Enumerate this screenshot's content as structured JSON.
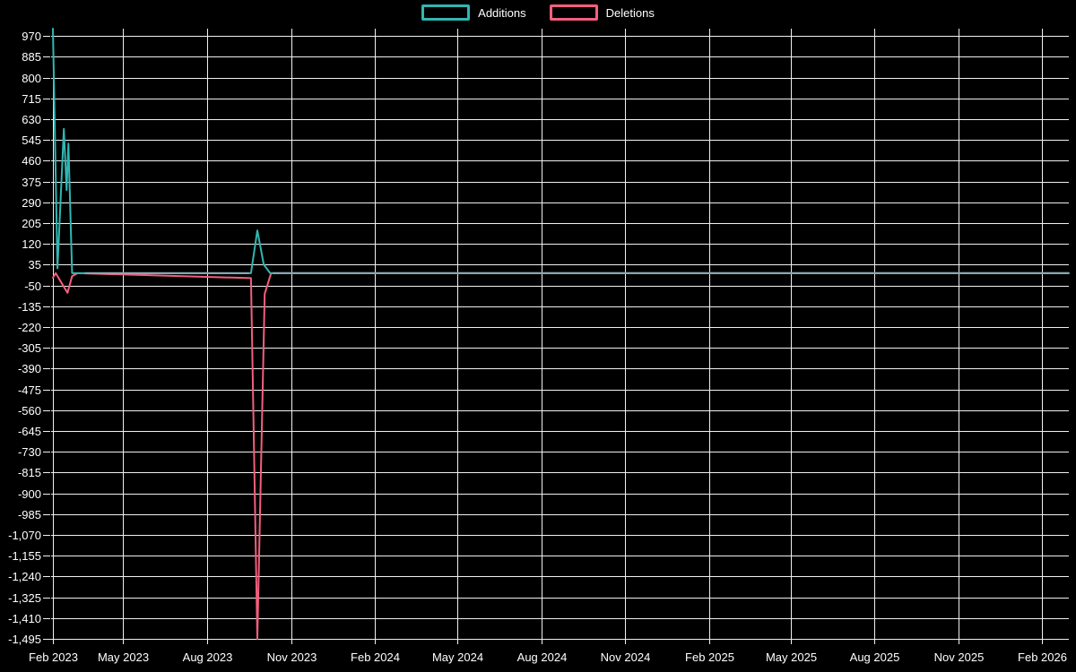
{
  "page": {
    "background": "#000000"
  },
  "legend": {
    "position": "top-center",
    "items": [
      {
        "label": "Additions",
        "color": "#31b6b2"
      },
      {
        "label": "Deletions",
        "color": "#f25f7d"
      }
    ]
  },
  "chart_data": {
    "type": "line",
    "title": "",
    "xlabel": "",
    "ylabel": "",
    "grid": true,
    "legend_position": "top",
    "background_color": "#000000",
    "gridline_color": "#f0f0f0",
    "text_color": "#ffffff",
    "overlap_line_color": "#8fa8b4",
    "y_axis": {
      "tick_step": 85,
      "range": [
        -1495,
        1000
      ],
      "tick_values": [
        970,
        885,
        800,
        715,
        630,
        545,
        460,
        375,
        290,
        205,
        120,
        35,
        -50,
        -135,
        -220,
        -305,
        -390,
        -475,
        -560,
        -645,
        -730,
        -815,
        -900,
        -985,
        -1070,
        -1155,
        -1240,
        -1325,
        -1410,
        -1495
      ]
    },
    "x_axis": {
      "range": [
        "2023-02-13",
        "2026-03-02"
      ],
      "ticks": [
        {
          "label": "Feb 2023",
          "date": "2023-02-13"
        },
        {
          "label": "May 2023",
          "date": "2023-05-01"
        },
        {
          "label": "Aug 2023",
          "date": "2023-08-01"
        },
        {
          "label": "Nov 2023",
          "date": "2023-11-01"
        },
        {
          "label": "Feb 2024",
          "date": "2024-02-01"
        },
        {
          "label": "May 2024",
          "date": "2024-05-01"
        },
        {
          "label": "Aug 2024",
          "date": "2024-08-01"
        },
        {
          "label": "Nov 2024",
          "date": "2024-11-01"
        },
        {
          "label": "Feb 2025",
          "date": "2025-02-01"
        },
        {
          "label": "May 2025",
          "date": "2025-05-01"
        },
        {
          "label": "Aug 2025",
          "date": "2025-08-01"
        },
        {
          "label": "Nov 2025",
          "date": "2025-11-01"
        },
        {
          "label": "Feb 2026",
          "date": "2026-02-01"
        }
      ]
    },
    "series": [
      {
        "name": "Additions",
        "color": "#31b6b2",
        "points": [
          [
            "2023-02-13",
            1000
          ],
          [
            "2023-02-18",
            20
          ],
          [
            "2023-02-25",
            590
          ],
          [
            "2023-02-28",
            340
          ],
          [
            "2023-03-02",
            530
          ],
          [
            "2023-03-06",
            0
          ],
          [
            "2023-09-18",
            0
          ],
          [
            "2023-09-25",
            175
          ],
          [
            "2023-10-02",
            35
          ],
          [
            "2023-10-09",
            0
          ],
          [
            "2026-03-02",
            0
          ]
        ]
      },
      {
        "name": "Deletions",
        "color": "#f25f7d",
        "points": [
          [
            "2023-02-13",
            -18
          ],
          [
            "2023-02-16",
            0
          ],
          [
            "2023-03-01",
            -80
          ],
          [
            "2023-03-06",
            -12
          ],
          [
            "2023-03-12",
            0
          ],
          [
            "2023-09-18",
            -20
          ],
          [
            "2023-09-25",
            -1495
          ],
          [
            "2023-10-03",
            -85
          ],
          [
            "2023-10-10",
            0
          ],
          [
            "2026-03-02",
            0
          ]
        ]
      }
    ],
    "overlap_segments": [
      {
        "from": "2023-03-20",
        "to": "2023-09-16",
        "value": 0
      },
      {
        "from": "2023-10-12",
        "to": "2026-03-02",
        "value": 0
      }
    ]
  }
}
